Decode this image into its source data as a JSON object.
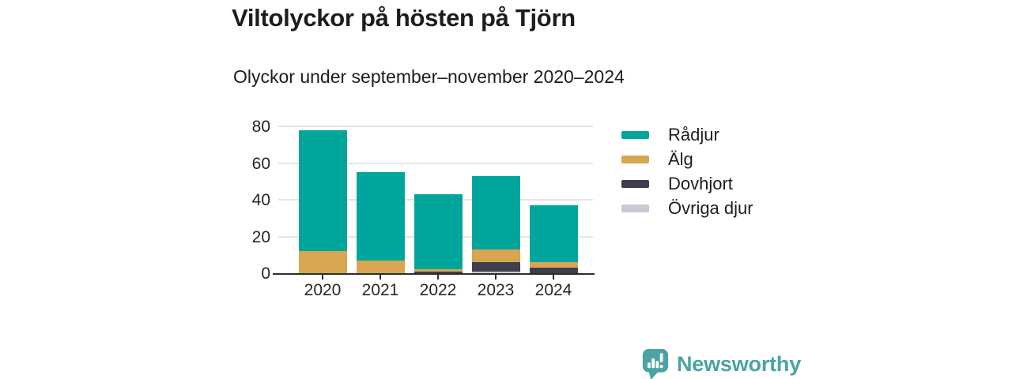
{
  "header": {
    "title": "Viltolyckor på hösten på Tjörn",
    "subtitle": "Olyckor under september–november 2020–2024"
  },
  "chart_data": {
    "type": "bar",
    "stacked": true,
    "title": "Viltolyckor på hösten på Tjörn",
    "subtitle": "Olyckor under september–november 2020–2024",
    "categories": [
      "2020",
      "2021",
      "2022",
      "2023",
      "2024"
    ],
    "series": [
      {
        "name": "Rådjur",
        "color": "#00a69c",
        "values": [
          66,
          48,
          41,
          40,
          31
        ]
      },
      {
        "name": "Älg",
        "color": "#d8a650",
        "values": [
          12,
          7,
          1,
          7,
          3
        ]
      },
      {
        "name": "Dovhjort",
        "color": "#3f3e4e",
        "values": [
          0,
          0,
          1,
          5,
          3
        ]
      },
      {
        "name": "Övriga djur",
        "color": "#c9c9d5",
        "values": [
          0,
          0,
          0,
          1,
          0
        ]
      }
    ],
    "totals": [
      78,
      55,
      43,
      53,
      37
    ],
    "stack_order_bottom_to_top": [
      "Övriga djur",
      "Dovhjort",
      "Älg",
      "Rådjur"
    ],
    "xlabel": "",
    "ylabel": "",
    "y_ticks": [
      0,
      20,
      40,
      60,
      80
    ],
    "ylim": [
      0,
      84
    ],
    "grid": "horizontal-only",
    "legend_position": "right"
  },
  "branding": {
    "logo_text": "Newsworthy",
    "logo_color": "#4ba4a1",
    "logo_icon": "bar-chart-speech-bubble"
  }
}
